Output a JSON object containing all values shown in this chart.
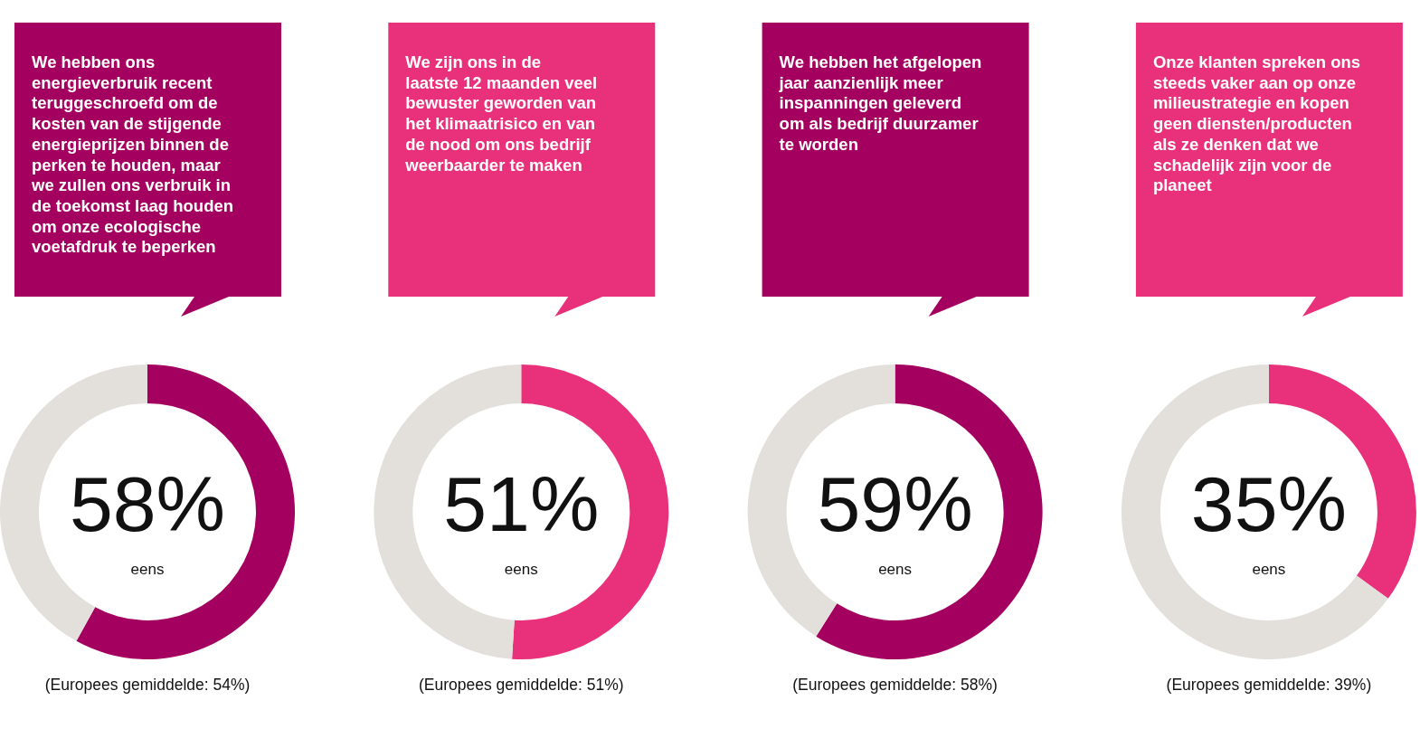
{
  "chart_data": [
    {
      "type": "donut",
      "title": "We hebben ons\nenergieverbruik recent\nteruggeschroefd om de\nkosten van de stijgende\nenergieprijzen binnen de\nperken te houden, maar\nwe zullen ons verbruik in\nde toekomst laag houden\nom onze ecologische\nvoetafdruk te beperken",
      "categories": [
        "eens",
        null
      ],
      "values": [
        58,
        42
      ],
      "colors": [
        "#a4005f",
        "#e3e0dc"
      ],
      "value_labels": [
        "58%",
        null
      ],
      "annotations": [
        "(Europees gemiddelde: 54%)"
      ]
    },
    {
      "type": "donut",
      "title": "We zijn ons in de\nlaatste 12 maanden veel\nbewuster geworden van\nhet klimaatrisico en van\nde nood om ons bedrijf\nweerbaarder te maken",
      "categories": [
        "eens",
        null
      ],
      "values": [
        51,
        49
      ],
      "colors": [
        "#e8317a",
        "#e3e0dc"
      ],
      "value_labels": [
        "51%",
        null
      ],
      "annotations": [
        "(Europees gemiddelde: 51%)"
      ]
    },
    {
      "type": "donut",
      "title": "We hebben het afgelopen\njaar aanzienlijk meer\ninspanningen geleverd\nom als bedrijf duurzamer\nte worden",
      "categories": [
        "eens",
        null
      ],
      "values": [
        59,
        41
      ],
      "colors": [
        "#a4005f",
        "#e3e0dc"
      ],
      "value_labels": [
        "59%",
        null
      ],
      "annotations": [
        "(Europees gemiddelde: 58%)"
      ]
    },
    {
      "type": "donut",
      "title": "Onze klanten spreken ons\nsteeds vaker aan op onze\nmilieustrategie en kopen\ngeen diensten/producten\nals ze denken dat we\nschadelijk zijn voor de\nplaneet",
      "categories": [
        "eens",
        null
      ],
      "values": [
        35,
        65
      ],
      "colors": [
        "#e8317a",
        "#e3e0dc"
      ],
      "value_labels": [
        "35%",
        null
      ],
      "annotations": [
        "(Europees gemiddelde: 39%)"
      ]
    }
  ]
}
